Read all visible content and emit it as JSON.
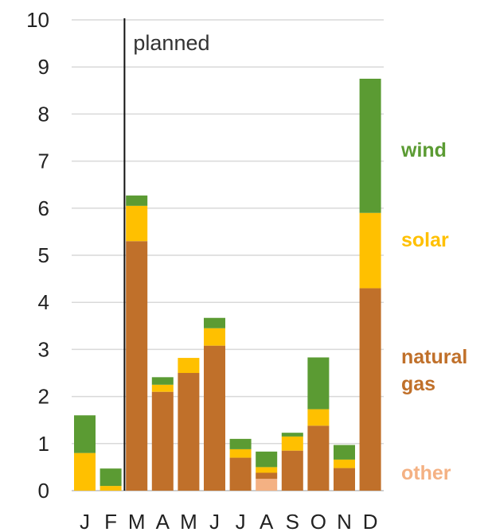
{
  "chart_data": {
    "type": "bar",
    "stacked": true,
    "categories": [
      "J",
      "F",
      "M",
      "A",
      "M",
      "J",
      "J",
      "A",
      "S",
      "O",
      "N",
      "D"
    ],
    "ylim": [
      0,
      10
    ],
    "yticks": [
      "0",
      "1",
      "2",
      "3",
      "4",
      "5",
      "6",
      "7",
      "8",
      "9",
      "10"
    ],
    "grid": true,
    "legend_position": "right",
    "annotation": {
      "text": "planned",
      "after_category_index": 1
    },
    "series": [
      {
        "name": "other",
        "color": "#F4B183",
        "values": [
          0,
          0,
          0,
          0,
          0,
          0,
          0,
          0.25,
          0,
          0,
          0,
          0
        ]
      },
      {
        "name": "natural gas",
        "color": "#C0702A",
        "values": [
          0,
          0,
          5.3,
          2.1,
          2.5,
          3.08,
          0.7,
          0.13,
          0.85,
          1.38,
          0.48,
          4.3
        ]
      },
      {
        "name": "solar",
        "color": "#FFC000",
        "values": [
          0.8,
          0.1,
          0.75,
          0.15,
          0.32,
          0.37,
          0.18,
          0.12,
          0.3,
          0.35,
          0.18,
          1.6
        ]
      },
      {
        "name": "wind",
        "color": "#5B9B33",
        "values": [
          0.8,
          0.37,
          0.22,
          0.16,
          0,
          0.22,
          0.22,
          0.33,
          0.08,
          1.1,
          0.31,
          2.85
        ]
      }
    ]
  }
}
